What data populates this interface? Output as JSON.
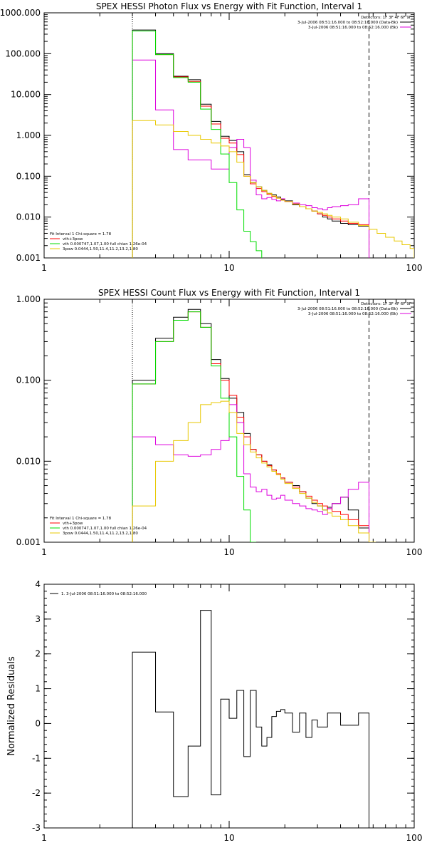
{
  "chart_data": [
    {
      "type": "line",
      "title": "SPEX HESSI Photon Flux vs Energy with Fit Function, Interval 1",
      "xscale": "log",
      "yscale": "log",
      "xlim": [
        1,
        100
      ],
      "ylim": [
        0.001,
        1000
      ],
      "xticks": [
        1,
        10,
        100
      ],
      "xtick_labels": [
        "1",
        "10",
        "100"
      ],
      "yticks": [
        0.001,
        0.01,
        0.1,
        1,
        10,
        100,
        1000
      ],
      "ytick_labels": [
        "0.001",
        "0.010",
        "0.100",
        "1.000",
        "10.000",
        "100.000",
        "1000.000"
      ],
      "vlines": [
        {
          "x": 3,
          "style": "dotted"
        },
        {
          "x": 57,
          "style": "dashed"
        }
      ],
      "legend_top": {
        "header": "Detectors: 1F 3F 4F 6F 9F",
        "entries": [
          {
            "label": "3-Jul-2006 08:51:16.000 to 08:52:16.000 (Data-Bk)",
            "color": "#000000"
          },
          {
            "label": "3-Jul-2006 08:51:16.000 to 08:52:16.000 (Bk)",
            "color": "#dd00dd"
          }
        ]
      },
      "legend_bottom": {
        "header": "Fit Interval 1    Chi-square = 1.78",
        "entries": [
          {
            "label": "vth+3pow",
            "color": "#ff0000"
          },
          {
            "label": "vth 0.000747,1.07,1.00  full chian 1.26e-04",
            "color": "#00dd00"
          },
          {
            "label": "3pow 0.0444,1.50,11.4,11.2,13.2,1.80",
            "color": "#e8c800"
          }
        ]
      },
      "series": [
        {
          "name": "Data-Bk",
          "color": "#000000",
          "edges": [
            3,
            4,
            5,
            6,
            7,
            8,
            9,
            10,
            11,
            12,
            13,
            14,
            15,
            16,
            17,
            18,
            19,
            20,
            22,
            24,
            26,
            28,
            30,
            32,
            34,
            36,
            40,
            44,
            50,
            57
          ],
          "values": [
            380,
            100,
            28,
            23,
            5.8,
            2.2,
            0.95,
            0.75,
            0.4,
            0.11,
            0.07,
            0.055,
            0.045,
            0.038,
            0.035,
            0.031,
            0.027,
            0.025,
            0.02,
            0.018,
            0.016,
            0.014,
            0.012,
            0.01,
            0.009,
            0.008,
            0.007,
            0.0065,
            0.006
          ]
        },
        {
          "name": "vth+3pow",
          "color": "#ff0000",
          "edges": [
            3,
            4,
            5,
            6,
            7,
            8,
            9,
            10,
            11,
            12,
            13,
            14,
            15,
            16,
            17,
            18,
            19,
            20,
            22,
            24,
            26,
            28,
            30,
            32,
            34,
            36,
            40,
            44,
            50,
            57
          ],
          "values": [
            360,
            95,
            27,
            21,
            5.2,
            1.9,
            0.85,
            0.65,
            0.34,
            0.1,
            0.065,
            0.05,
            0.042,
            0.036,
            0.032,
            0.029,
            0.026,
            0.024,
            0.021,
            0.018,
            0.016,
            0.014,
            0.012,
            0.011,
            0.01,
            0.009,
            0.008,
            0.007,
            0.0065
          ]
        },
        {
          "name": "Bk",
          "color": "#dd00dd",
          "edges": [
            3,
            4,
            5,
            6,
            7,
            8,
            9,
            10,
            11,
            12,
            13,
            14,
            15,
            16,
            17,
            18,
            19,
            20,
            22,
            24,
            26,
            28,
            30,
            32,
            34,
            36,
            40,
            44,
            50,
            57
          ],
          "values": [
            70,
            4.2,
            0.45,
            0.25,
            0.25,
            0.15,
            0.15,
            0.5,
            0.8,
            0.5,
            0.08,
            0.035,
            0.028,
            0.03,
            0.027,
            0.025,
            0.028,
            0.024,
            0.022,
            0.02,
            0.019,
            0.017,
            0.016,
            0.015,
            0.017,
            0.018,
            0.019,
            0.02,
            0.028
          ]
        },
        {
          "name": "vth",
          "color": "#00dd00",
          "edges": [
            3,
            4,
            5,
            6,
            7,
            8,
            9,
            10,
            11,
            12,
            13,
            14,
            15
          ],
          "values": [
            360,
            95,
            26,
            20,
            4.4,
            1.4,
            0.35,
            0.07,
            0.015,
            0.0045,
            0.0025,
            0.0015
          ]
        },
        {
          "name": "3pow",
          "color": "#e8c800",
          "edges": [
            3,
            4,
            5,
            6,
            7,
            8,
            9,
            10,
            11,
            12,
            13,
            14,
            15,
            16,
            17,
            18,
            19,
            20,
            22,
            24,
            26,
            28,
            30,
            32,
            34,
            36,
            40,
            44,
            50,
            57,
            63,
            70,
            78,
            86,
            95,
            100
          ],
          "values": [
            2.3,
            1.8,
            1.25,
            1.0,
            0.8,
            0.65,
            0.55,
            0.4,
            0.22,
            0.1,
            0.07,
            0.055,
            0.045,
            0.038,
            0.033,
            0.029,
            0.026,
            0.024,
            0.021,
            0.018,
            0.016,
            0.014,
            0.013,
            0.012,
            0.011,
            0.01,
            0.009,
            0.0075,
            0.0062,
            0.005,
            0.004,
            0.0032,
            0.0026,
            0.0021,
            0.0017
          ]
        }
      ]
    },
    {
      "type": "line",
      "title": "SPEX HESSI Count Flux vs Energy with Fit Function, Interval 1",
      "xscale": "log",
      "yscale": "log",
      "xlim": [
        1,
        100
      ],
      "ylim": [
        0.001,
        1
      ],
      "xticks": [
        1,
        10,
        100
      ],
      "xtick_labels": [
        "1",
        "10",
        "100"
      ],
      "yticks": [
        0.001,
        0.01,
        0.1,
        1
      ],
      "ytick_labels": [
        "0.001",
        "0.010",
        "0.100",
        "1.000"
      ],
      "vlines": [
        {
          "x": 3,
          "style": "dotted"
        },
        {
          "x": 57,
          "style": "dashed"
        }
      ],
      "legend_top": {
        "header": "Detectors: 1F 3F 4F 6F 9F",
        "entries": [
          {
            "label": "3-Jul-2006 08:51:16.000 to 08:52:16.000 (Data-Bk)",
            "color": "#000000"
          },
          {
            "label": "3-Jul-2006 08:51:16.000 to 08:52:16.000 (Bk)",
            "color": "#dd00dd"
          }
        ]
      },
      "legend_bottom": {
        "header": "Fit Interval 1    Chi-square = 1.78",
        "entries": [
          {
            "label": "vth+3pow",
            "color": "#ff0000"
          },
          {
            "label": "vth 0.000747,1.07,1.00  full chian 1.26e-04",
            "color": "#00dd00"
          },
          {
            "label": "3pow 0.0444,1.50,11.4,11.2,13.2,1.80",
            "color": "#e8c800"
          }
        ]
      },
      "series": [
        {
          "name": "Data-Bk",
          "color": "#000000",
          "edges": [
            3,
            4,
            5,
            6,
            7,
            8,
            9,
            10,
            11,
            12,
            13,
            14,
            15,
            16,
            17,
            18,
            19,
            20,
            22,
            24,
            26,
            28,
            30,
            32,
            34,
            36,
            40,
            44,
            50,
            57
          ],
          "values": [
            0.1,
            0.33,
            0.6,
            0.75,
            0.5,
            0.18,
            0.105,
            0.06,
            0.04,
            0.022,
            0.014,
            0.012,
            0.01,
            0.009,
            0.0078,
            0.007,
            0.0062,
            0.0055,
            0.005,
            0.0042,
            0.0035,
            0.003,
            0.0028,
            0.0025,
            0.0027,
            0.003,
            0.0036,
            0.0025,
            0.0015
          ]
        },
        {
          "name": "vth+3pow",
          "color": "#ff0000",
          "edges": [
            3,
            4,
            5,
            6,
            7,
            8,
            9,
            10,
            11,
            12,
            13,
            14,
            15,
            16,
            17,
            18,
            19,
            20,
            22,
            24,
            26,
            28,
            30,
            32,
            34,
            36,
            40,
            44,
            50,
            57
          ],
          "values": [
            0.09,
            0.3,
            0.55,
            0.7,
            0.45,
            0.16,
            0.1,
            0.065,
            0.035,
            0.02,
            0.014,
            0.012,
            0.01,
            0.0088,
            0.0078,
            0.007,
            0.0062,
            0.0055,
            0.0048,
            0.0042,
            0.0037,
            0.0033,
            0.003,
            0.0028,
            0.0026,
            0.0024,
            0.0022,
            0.0019,
            0.0016
          ]
        },
        {
          "name": "Bk",
          "color": "#dd00dd",
          "edges": [
            3,
            4,
            5,
            6,
            7,
            8,
            9,
            10,
            11,
            12,
            13,
            14,
            15,
            16,
            17,
            18,
            19,
            20,
            22,
            24,
            26,
            28,
            30,
            32,
            34,
            36,
            40,
            44,
            50,
            57
          ],
          "values": [
            0.02,
            0.016,
            0.012,
            0.0115,
            0.012,
            0.014,
            0.018,
            0.05,
            0.03,
            0.007,
            0.0048,
            0.0042,
            0.0045,
            0.0038,
            0.0034,
            0.0035,
            0.0038,
            0.0033,
            0.003,
            0.0028,
            0.0026,
            0.0025,
            0.0024,
            0.0022,
            0.0026,
            0.003,
            0.0036,
            0.0045,
            0.0055
          ]
        },
        {
          "name": "vth",
          "color": "#00dd00",
          "edges": [
            3,
            4,
            5,
            6,
            7,
            8,
            9,
            10,
            11,
            12,
            13,
            14
          ],
          "values": [
            0.09,
            0.3,
            0.55,
            0.7,
            0.45,
            0.15,
            0.06,
            0.02,
            0.0065,
            0.0025,
            0.001
          ]
        },
        {
          "name": "3pow",
          "color": "#e8c800",
          "edges": [
            3,
            4,
            5,
            6,
            7,
            8,
            9,
            10,
            11,
            12,
            13,
            14,
            15,
            16,
            17,
            18,
            19,
            20,
            22,
            24,
            26,
            28,
            30,
            32,
            34,
            36,
            40,
            44,
            50,
            57,
            62
          ],
          "values": [
            0.0028,
            0.01,
            0.018,
            0.03,
            0.05,
            0.053,
            0.055,
            0.04,
            0.022,
            0.016,
            0.013,
            0.011,
            0.0095,
            0.0085,
            0.0075,
            0.0068,
            0.006,
            0.0053,
            0.0046,
            0.004,
            0.0035,
            0.0031,
            0.0028,
            0.0025,
            0.0023,
            0.0021,
            0.0019,
            0.0016,
            0.0013,
            0.001
          ]
        }
      ]
    },
    {
      "type": "line",
      "title": "",
      "xscale": "log",
      "yscale": "linear",
      "xlim": [
        1,
        100
      ],
      "ylim": [
        -3,
        4
      ],
      "xticks": [
        1,
        10,
        100
      ],
      "xtick_labels": [
        "1",
        "10",
        "100"
      ],
      "yticks": [
        -3,
        -2,
        -1,
        0,
        1,
        2,
        3,
        4
      ],
      "ytick_labels": [
        "-3",
        "-2",
        "-1",
        "0",
        "1",
        "2",
        "3",
        "4"
      ],
      "ylabel": "Normalized Residuals",
      "legend_top": {
        "entries": [
          {
            "label": "1.  3-Jul-2006 08:51:16.000 to 08:52:16.000",
            "color": "#000000"
          }
        ]
      },
      "series": [
        {
          "name": "1.  3-Jul-2006 08:51:16.000 to 08:52:16.000",
          "color": "#000000",
          "edges": [
            3,
            4,
            5,
            6,
            7,
            8,
            9,
            10,
            11,
            12,
            13,
            14,
            15,
            16,
            17,
            18,
            19,
            20,
            22,
            24,
            26,
            28,
            30,
            32,
            34,
            36,
            40,
            44,
            50,
            57
          ],
          "values": [
            2.05,
            0.33,
            -2.1,
            -0.65,
            3.25,
            -2.05,
            0.7,
            0.15,
            0.95,
            -0.95,
            0.95,
            -0.1,
            -0.65,
            -0.4,
            0.2,
            0.35,
            0.4,
            0.3,
            -0.25,
            0.3,
            -0.4,
            0.1,
            -0.1,
            -0.1,
            0.3,
            0.3,
            -0.05,
            -0.05,
            0.3
          ]
        }
      ]
    }
  ]
}
